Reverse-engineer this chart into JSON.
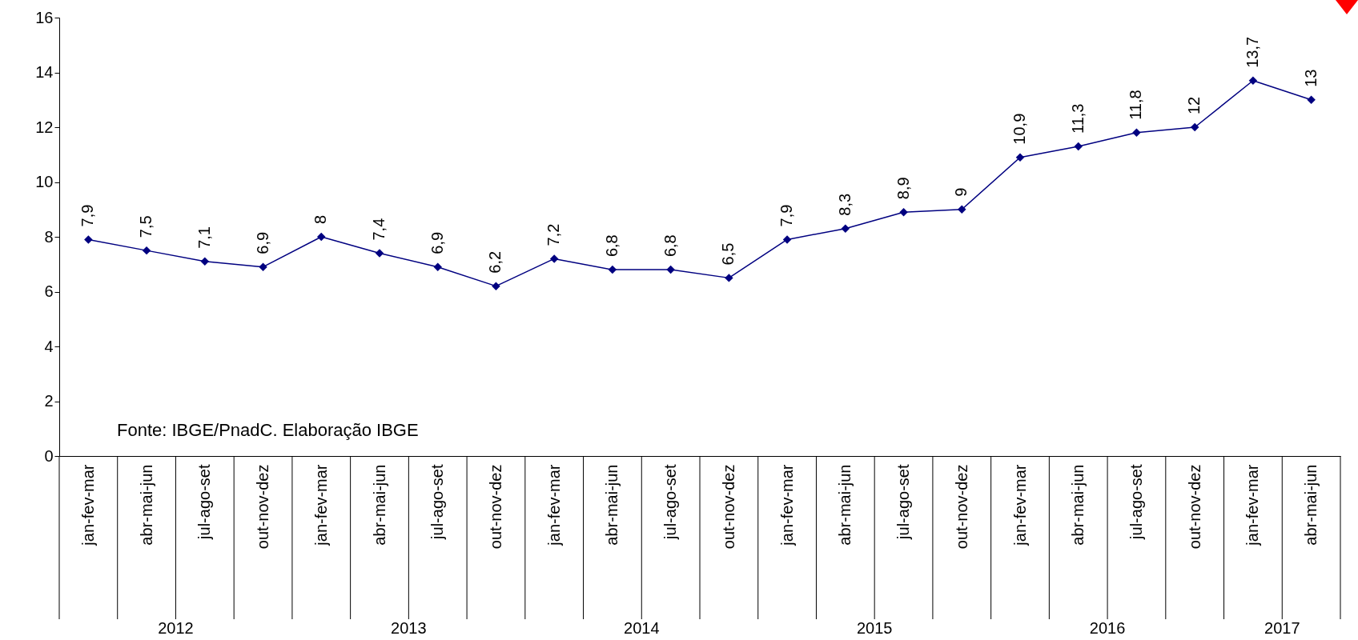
{
  "chart_data": {
    "type": "line",
    "categories": [
      "jan-fev-mar",
      "abr-mai-jun",
      "jul-ago-set",
      "out-nov-dez",
      "jan-fev-mar",
      "abr-mai-jun",
      "jul-ago-set",
      "out-nov-dez",
      "jan-fev-mar",
      "abr-mai-jun",
      "jul-ago-set",
      "out-nov-dez",
      "jan-fev-mar",
      "abr-mai-jun",
      "jul-ago-set",
      "out-nov-dez",
      "jan-fev-mar",
      "abr-mai-jun",
      "jul-ago-set",
      "out-nov-dez",
      "jan-fev-mar",
      "abr-mai-jun"
    ],
    "series": [
      {
        "color": "#000080",
        "values": [
          7.9,
          7.5,
          7.1,
          6.9,
          8,
          7.4,
          6.9,
          6.2,
          7.2,
          6.8,
          6.8,
          6.5,
          7.9,
          8.3,
          8.9,
          9,
          10.9,
          11.3,
          11.8,
          12,
          13.7,
          13
        ],
        "value_labels": [
          "7,9",
          "7,5",
          "7,1",
          "6,9",
          "8",
          "7,4",
          "6,9",
          "6,2",
          "7,2",
          "6,8",
          "6,8",
          "6,5",
          "7,9",
          "8,3",
          "8,9",
          "9",
          "10,9",
          "11,3",
          "11,8",
          "12",
          "13,7",
          "13"
        ]
      }
    ],
    "ylim": [
      0,
      16
    ],
    "yticks": [
      0,
      2,
      4,
      6,
      8,
      10,
      12,
      14,
      16
    ],
    "grid": false,
    "marker": "diamond",
    "line_style": "solid",
    "annotations": [
      "Fonte: IBGE/PnadC. Elaboração IBGE",
      "2012",
      "2013",
      "2014",
      "2015",
      "2016",
      "2017"
    ]
  }
}
